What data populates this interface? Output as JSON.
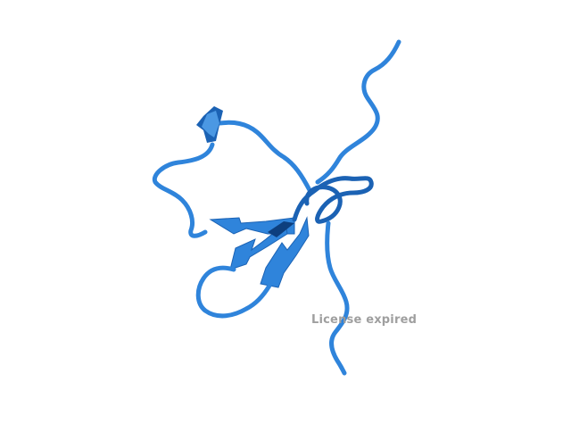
{
  "viewer": {
    "subject": "protein-cartoon-ribbon",
    "background_color": "#ffffff",
    "colors": {
      "ribbon_light": "#4b98e3",
      "ribbon_mid": "#2f84db",
      "ribbon_dark": "#1b62b4",
      "ribbon_shadow": "#0d3f7e"
    }
  },
  "watermark": {
    "text": "License expired",
    "color": "#9a9a9a"
  }
}
